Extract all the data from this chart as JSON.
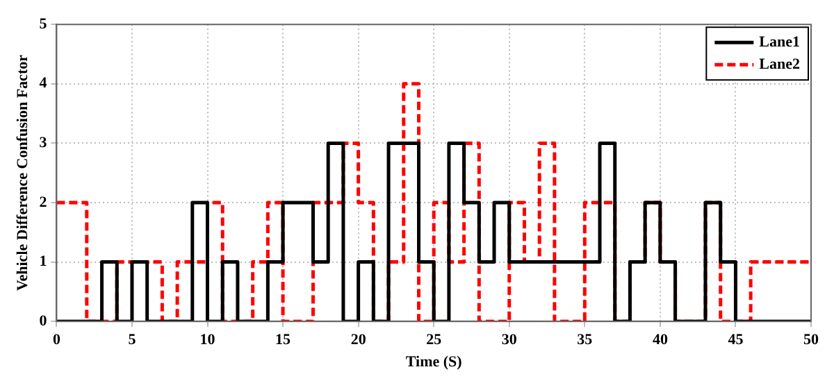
{
  "chart_data": {
    "type": "step",
    "xlabel": "Time (S)",
    "ylabel": "Vehicle Difference Confusion Factor",
    "series": [
      {
        "name": "Lane1",
        "color": "#000000",
        "line_style": "solid",
        "x": [
          0,
          3,
          4,
          5,
          6,
          9,
          10,
          11,
          12,
          14,
          15,
          17,
          18,
          19,
          20,
          21,
          22,
          24,
          25,
          26,
          27,
          28,
          29,
          30,
          36,
          37,
          38,
          39,
          40,
          41,
          43,
          44,
          45,
          50
        ],
        "values": [
          0,
          1,
          0,
          1,
          0,
          2,
          0,
          1,
          0,
          1,
          2,
          1,
          3,
          0,
          1,
          0,
          3,
          1,
          0,
          3,
          2,
          1,
          2,
          1,
          3,
          0,
          1,
          2,
          1,
          0,
          2,
          1,
          0,
          0
        ]
      },
      {
        "name": "Lane2",
        "color": "#ff0000",
        "line_style": "dashed",
        "x": [
          0,
          2,
          4,
          7,
          8,
          10,
          11,
          13,
          14,
          15,
          17,
          19,
          20,
          21,
          22,
          23,
          24,
          25,
          26,
          27,
          28,
          30,
          31,
          32,
          33,
          35,
          37,
          38,
          39,
          40,
          41,
          43,
          44,
          46,
          50
        ],
        "values": [
          2,
          0,
          1,
          0,
          1,
          2,
          0,
          1,
          2,
          0,
          2,
          3,
          2,
          0,
          1,
          4,
          0,
          2,
          1,
          3,
          0,
          2,
          1,
          3,
          0,
          2,
          0,
          1,
          2,
          1,
          0,
          2,
          0,
          1,
          1
        ]
      }
    ],
    "xlim": [
      0,
      50
    ],
    "xticks": [
      0,
      5,
      10,
      15,
      20,
      25,
      30,
      35,
      40,
      45,
      50
    ],
    "ylim": [
      0,
      5
    ],
    "yticks": [
      0,
      1,
      2,
      3,
      4,
      5
    ],
    "grid": true,
    "legend": "top right",
    "marker": "none"
  }
}
